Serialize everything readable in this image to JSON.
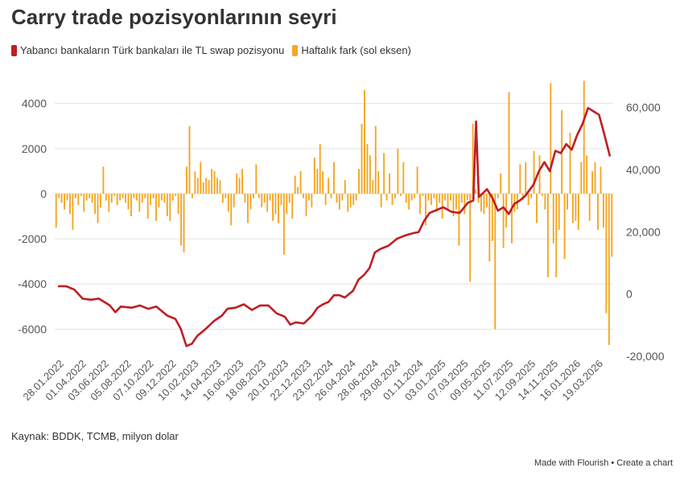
{
  "title": "Carry trade pozisyonlarının seyri",
  "source": "Kaynak: BDDK, TCMB, milyon dolar",
  "footer": {
    "made_with": "Made with Flourish",
    "separator": " • ",
    "create": "Create a chart"
  },
  "colors": {
    "line": "#bf1e24",
    "bars": "#f5a623",
    "grid": "#e3e3e3",
    "axis_text": "#555555"
  },
  "chart_data": {
    "type": "bar+line",
    "title": "Carry trade pozisyonlarının seyri",
    "grid": true,
    "legend_position": "top-left",
    "series": [
      {
        "name": "Yabancı bankaların Türk bankaları ile TL swap pozisyonu",
        "type": "line",
        "axis": "right",
        "points": [
          [
            0,
            -4100
          ],
          [
            3,
            -4100
          ],
          [
            6,
            -4250
          ],
          [
            9,
            -4650
          ],
          [
            12,
            -4700
          ],
          [
            15,
            -4650
          ],
          [
            19,
            -4950
          ],
          [
            21,
            -5250
          ],
          [
            23,
            -5000
          ],
          [
            27,
            -5050
          ],
          [
            30,
            -4950
          ],
          [
            33,
            -5100
          ],
          [
            36,
            -5000
          ],
          [
            40,
            -5400
          ],
          [
            43,
            -5550
          ],
          [
            45,
            -6000
          ],
          [
            47,
            -6750
          ],
          [
            49,
            -6650
          ],
          [
            51,
            -6300
          ],
          [
            54,
            -6000
          ],
          [
            57,
            -5650
          ],
          [
            60,
            -5400
          ],
          [
            62,
            -5100
          ],
          [
            65,
            -5050
          ],
          [
            68,
            -4900
          ],
          [
            71,
            -5150
          ],
          [
            74,
            -4950
          ],
          [
            77,
            -4950
          ],
          [
            80,
            -5300
          ],
          [
            83,
            -5450
          ],
          [
            85,
            -5800
          ],
          [
            87,
            -5700
          ],
          [
            90,
            -5750
          ],
          [
            93,
            -5400
          ],
          [
            95,
            -5050
          ],
          [
            97,
            -4900
          ],
          [
            99,
            -4800
          ],
          [
            101,
            -4500
          ],
          [
            103,
            -4500
          ],
          [
            105,
            -4600
          ],
          [
            108,
            -4300
          ],
          [
            110,
            -3800
          ],
          [
            112,
            -3600
          ],
          [
            114,
            -3300
          ],
          [
            116,
            -2600
          ],
          [
            118,
            -2450
          ],
          [
            121,
            -2300
          ],
          [
            124,
            -2000
          ],
          [
            127,
            -1850
          ],
          [
            130,
            -1750
          ],
          [
            132,
            -1700
          ],
          [
            134,
            -1200
          ],
          [
            136,
            -850
          ],
          [
            138,
            -750
          ],
          [
            141,
            -600
          ],
          [
            144,
            -800
          ],
          [
            147,
            -850
          ],
          [
            150,
            -400
          ],
          [
            152,
            -300
          ],
          [
            153,
            3200
          ],
          [
            154,
            -150
          ],
          [
            157,
            200
          ],
          [
            159,
            -200
          ],
          [
            161,
            -750
          ],
          [
            163,
            -600
          ],
          [
            165,
            -900
          ],
          [
            167,
            -450
          ],
          [
            169,
            -300
          ],
          [
            171,
            -100
          ],
          [
            174,
            400
          ],
          [
            176,
            1000
          ],
          [
            178,
            1400
          ],
          [
            180,
            1000
          ],
          [
            182,
            1900
          ],
          [
            184,
            1800
          ],
          [
            186,
            2200
          ],
          [
            188,
            1950
          ],
          [
            190,
            2600
          ],
          [
            192,
            3100
          ],
          [
            194,
            3800
          ],
          [
            196,
            3650
          ],
          [
            198,
            3500
          ],
          [
            200,
            2600
          ],
          [
            202,
            1650
          ]
        ]
      },
      {
        "name": "Haftalık fark (sol eksen)",
        "type": "bar",
        "axis": "left",
        "values": [
          -1500,
          -200,
          -400,
          -700,
          -300,
          -900,
          -1600,
          -200,
          -500,
          -100,
          -800,
          -300,
          -200,
          -400,
          -900,
          -1300,
          -600,
          1200,
          -300,
          -800,
          -400,
          -100,
          -500,
          -300,
          -200,
          -400,
          -700,
          -1000,
          -200,
          -300,
          -800,
          -400,
          -200,
          -1100,
          -500,
          -200,
          -1200,
          -600,
          -300,
          -400,
          -1000,
          -1200,
          -300,
          -100,
          -900,
          -2300,
          -2600,
          1200,
          3000,
          -200,
          1000,
          700,
          1400,
          500,
          700,
          600,
          1100,
          1000,
          700,
          600,
          -400,
          -200,
          -800,
          -1400,
          -600,
          900,
          700,
          1100,
          -400,
          -1300,
          -700,
          -200,
          1300,
          -200,
          -600,
          -400,
          -800,
          -300,
          -1200,
          -900,
          -1300,
          -500,
          -2700,
          -900,
          -400,
          -1100,
          800,
          300,
          1000,
          -200,
          -1000,
          -300,
          -600,
          1600,
          1100,
          2200,
          1000,
          -500,
          700,
          -200,
          1400,
          -400,
          -700,
          -300,
          600,
          -800,
          -600,
          -500,
          -300,
          1100,
          3100,
          4600,
          2200,
          1700,
          600,
          3000,
          1000,
          -600,
          1800,
          -300,
          900,
          -500,
          -200,
          2000,
          -100,
          1400,
          -400,
          -700,
          -300,
          -200,
          1200,
          -900,
          -100,
          -1400,
          -300,
          -500,
          -200,
          -800,
          -400,
          -1100,
          -300,
          -700,
          -300,
          -1000,
          -700,
          -2300,
          -400,
          -900,
          -300,
          -3900,
          3100,
          200,
          -400,
          -800,
          -900,
          -600,
          -3000,
          -2100,
          -6000,
          -200,
          900,
          -2400,
          -1500,
          4500,
          -2200,
          -800,
          -700,
          1300,
          -300,
          1400,
          -500,
          -200,
          1900,
          -1300,
          1700,
          -100,
          -700,
          -3700,
          4900,
          -2200,
          -3700,
          -1600,
          3700,
          -2900,
          -700,
          2700,
          -1300,
          -1200,
          -1600,
          1400,
          5000,
          1700,
          -1200,
          1000,
          1400,
          -1600,
          1200,
          -1500,
          -5300,
          -6700,
          -2800
        ]
      }
    ],
    "x_tick_labels": [
      "28.01.2022",
      "01.04.2022",
      "03.06.2022",
      "05.08.2022",
      "07.10.2022",
      "09.12.2022",
      "10.02.2023",
      "14.04.2023",
      "16.06.2023",
      "18.08.2023",
      "20.10.2023",
      "22.12.2023",
      "23.02.2024",
      "26.04.2024",
      "28.06.2024",
      "29.08.2024",
      "01.11.2024",
      "03.01.2025",
      "07.03.2025",
      "09.05.2025",
      "11.07.2025",
      "12.09.2025",
      "14.11.2025",
      "16.01.2026",
      "19.03.2026"
    ],
    "y_left": {
      "ticks": [
        4000,
        2000,
        0,
        -2000,
        -4000,
        -6000
      ],
      "ylim": [
        -7200,
        5200
      ]
    },
    "y_right": {
      "ticks": [
        "60,000",
        "40,000",
        "20,000",
        "0",
        "-20,000"
      ],
      "ylim": [
        -20000,
        70000
      ]
    }
  }
}
